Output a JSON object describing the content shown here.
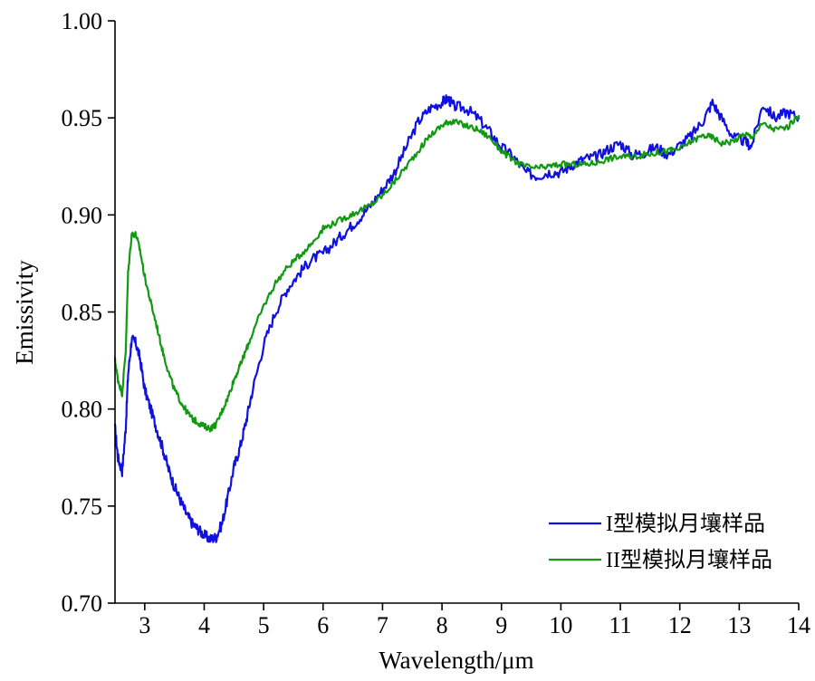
{
  "chart_data": {
    "type": "line",
    "xlabel": "Wavelength/μm",
    "ylabel": "Emissivity",
    "xlim": [
      2.5,
      14
    ],
    "ylim": [
      0.7,
      1.0
    ],
    "x_ticks": [
      3,
      4,
      5,
      6,
      7,
      8,
      9,
      10,
      11,
      12,
      13,
      14
    ],
    "y_ticks": [
      0.7,
      0.75,
      0.8,
      0.85,
      0.9,
      0.95,
      1.0
    ],
    "y_tick_labels": [
      "0.70",
      "0.75",
      "0.80",
      "0.85",
      "0.90",
      "0.95",
      "1.00"
    ],
    "grid": false,
    "legend_position": "lower-right",
    "series": [
      {
        "name": "I型模拟月壤样品",
        "color": "#1010e0",
        "x": [
          2.5,
          2.55,
          2.62,
          2.68,
          2.72,
          2.78,
          2.85,
          2.92,
          3.0,
          3.1,
          3.2,
          3.3,
          3.4,
          3.5,
          3.6,
          3.7,
          3.8,
          3.9,
          4.0,
          4.1,
          4.2,
          4.3,
          4.4,
          4.5,
          4.6,
          4.7,
          4.8,
          5.0,
          5.2,
          5.4,
          5.6,
          5.8,
          6.0,
          6.2,
          6.4,
          6.6,
          6.8,
          7.0,
          7.2,
          7.4,
          7.6,
          7.8,
          8.0,
          8.1,
          8.2,
          8.4,
          8.6,
          8.8,
          9.0,
          9.2,
          9.4,
          9.6,
          9.8,
          10.0,
          10.2,
          10.4,
          10.6,
          10.8,
          11.0,
          11.2,
          11.4,
          11.6,
          11.8,
          12.0,
          12.2,
          12.4,
          12.55,
          12.7,
          12.9,
          13.1,
          13.2,
          13.4,
          13.6,
          13.8,
          14.0
        ],
        "values": [
          0.79,
          0.775,
          0.768,
          0.79,
          0.818,
          0.836,
          0.834,
          0.826,
          0.81,
          0.8,
          0.79,
          0.78,
          0.769,
          0.76,
          0.753,
          0.746,
          0.741,
          0.738,
          0.735,
          0.733,
          0.734,
          0.741,
          0.755,
          0.77,
          0.78,
          0.793,
          0.808,
          0.833,
          0.85,
          0.862,
          0.87,
          0.877,
          0.88,
          0.886,
          0.892,
          0.898,
          0.905,
          0.913,
          0.922,
          0.935,
          0.948,
          0.955,
          0.958,
          0.96,
          0.956,
          0.955,
          0.95,
          0.943,
          0.935,
          0.93,
          0.922,
          0.92,
          0.922,
          0.922,
          0.926,
          0.929,
          0.93,
          0.934,
          0.937,
          0.931,
          0.932,
          0.935,
          0.931,
          0.936,
          0.941,
          0.949,
          0.958,
          0.95,
          0.94,
          0.938,
          0.935,
          0.957,
          0.95,
          0.953,
          0.95
        ]
      },
      {
        "name": "II型模拟月壤样品",
        "color": "#119911",
        "x": [
          2.5,
          2.55,
          2.62,
          2.68,
          2.72,
          2.78,
          2.85,
          2.92,
          3.0,
          3.1,
          3.2,
          3.3,
          3.4,
          3.5,
          3.6,
          3.7,
          3.8,
          3.9,
          4.0,
          4.1,
          4.2,
          4.3,
          4.4,
          4.5,
          4.6,
          4.7,
          4.8,
          5.0,
          5.2,
          5.4,
          5.6,
          5.8,
          6.0,
          6.2,
          6.4,
          6.6,
          6.8,
          7.0,
          7.2,
          7.4,
          7.6,
          7.8,
          8.0,
          8.1,
          8.2,
          8.4,
          8.6,
          8.8,
          9.0,
          9.2,
          9.4,
          9.6,
          9.8,
          10.0,
          10.2,
          10.4,
          10.6,
          10.8,
          11.0,
          11.2,
          11.4,
          11.6,
          11.8,
          12.0,
          12.2,
          12.4,
          12.55,
          12.7,
          12.9,
          13.1,
          13.2,
          13.4,
          13.6,
          13.8,
          14.0
        ],
        "values": [
          0.825,
          0.815,
          0.808,
          0.83,
          0.87,
          0.89,
          0.89,
          0.882,
          0.868,
          0.855,
          0.843,
          0.83,
          0.819,
          0.81,
          0.804,
          0.799,
          0.795,
          0.793,
          0.791,
          0.79,
          0.792,
          0.799,
          0.806,
          0.815,
          0.822,
          0.83,
          0.838,
          0.853,
          0.865,
          0.873,
          0.879,
          0.885,
          0.893,
          0.896,
          0.899,
          0.902,
          0.905,
          0.91,
          0.917,
          0.925,
          0.933,
          0.941,
          0.946,
          0.948,
          0.948,
          0.946,
          0.944,
          0.94,
          0.933,
          0.928,
          0.925,
          0.924,
          0.925,
          0.926,
          0.926,
          0.926,
          0.927,
          0.929,
          0.93,
          0.93,
          0.931,
          0.932,
          0.933,
          0.934,
          0.938,
          0.941,
          0.94,
          0.937,
          0.938,
          0.942,
          0.94,
          0.947,
          0.944,
          0.945,
          0.951
        ]
      }
    ]
  }
}
